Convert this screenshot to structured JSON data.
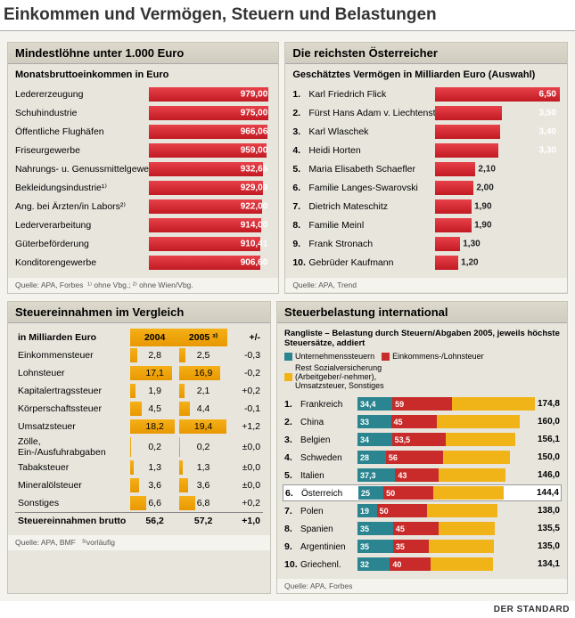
{
  "title": "Einkommen und Vermögen, Steuern und Belastungen",
  "colors": {
    "red_grad_top": "#e8414a",
    "red_grad_bot": "#c11a22",
    "orange_grad_top": "#f5b018",
    "orange_grad_bot": "#e89800",
    "teal": "#2a8590",
    "red2": "#c92a2a",
    "yellow": "#f0b418",
    "panel_bg": "#e8e5dd"
  },
  "wages": {
    "title": "Mindestlöhne unter 1.000 Euro",
    "subtitle": "Monatsbruttoeinkommen in Euro",
    "max": 1000,
    "rows": [
      {
        "label": "Ledererzeugung",
        "val": "979,00",
        "n": 979
      },
      {
        "label": "Schuhindustrie",
        "val": "975,00",
        "n": 975
      },
      {
        "label": "Öffentliche Flughäfen",
        "val": "966,06",
        "n": 966.06
      },
      {
        "label": "Friseurgewerbe",
        "val": "959,00",
        "n": 959
      },
      {
        "label": "Nahrungs- u. Genussmittelgewerbe",
        "val": "932,65",
        "n": 932.65
      },
      {
        "label": "Bekleidungsindustrie¹⁾",
        "val": "929,03",
        "n": 929.03
      },
      {
        "label": "Ang. bei Ärzten/in Labors²⁾",
        "val": "922,00",
        "n": 922
      },
      {
        "label": "Lederverarbeitung",
        "val": "914,00",
        "n": 914
      },
      {
        "label": "Güterbeförderung",
        "val": "910,41",
        "n": 910.41
      },
      {
        "label": "Konditorengewerbe",
        "val": "906,60",
        "n": 906.6
      }
    ],
    "source": "Quelle: APA, Forbes",
    "notes": "¹⁾ ohne Vbg.; ²⁾ ohne Wien/Vbg."
  },
  "rich": {
    "title": "Die reichsten Österreicher",
    "subtitle": "Geschätztes Vermögen in Milliarden Euro (Auswahl)",
    "max": 6.5,
    "rows": [
      {
        "r": "1.",
        "label": "Karl Friedrich Flick",
        "val": "6,50",
        "n": 6.5
      },
      {
        "r": "2.",
        "label": "Fürst Hans Adam v. Liechtenstein",
        "val": "3,50",
        "n": 3.5
      },
      {
        "r": "3.",
        "label": "Karl Wlaschek",
        "val": "3,40",
        "n": 3.4
      },
      {
        "r": "4.",
        "label": "Heidi Horten",
        "val": "3,30",
        "n": 3.3
      },
      {
        "r": "5.",
        "label": "Maria Elisabeth Schaefler",
        "val": "2,10",
        "n": 2.1
      },
      {
        "r": "6.",
        "label": "Familie Langes-Swarovski",
        "val": "2,00",
        "n": 2.0
      },
      {
        "r": "7.",
        "label": "Dietrich Mateschitz",
        "val": "1,90",
        "n": 1.9
      },
      {
        "r": "8.",
        "label": "Familie Meinl",
        "val": "1,90",
        "n": 1.9
      },
      {
        "r": "9.",
        "label": "Frank Stronach",
        "val": "1,30",
        "n": 1.3
      },
      {
        "r": "10.",
        "label": "Gebrüder Kaufmann",
        "val": "1,20",
        "n": 1.2
      }
    ],
    "source": "Quelle: APA, Trend"
  },
  "tax": {
    "title": "Steuereinnahmen im Vergleich",
    "subtitle": "in Milliarden Euro",
    "col1": "2004",
    "col2": "2005 ³⁾",
    "col3": "+/-",
    "maxbar": 20,
    "rows": [
      {
        "label": "Einkommensteuer",
        "a": "2,8",
        "na": 2.8,
        "b": "2,5",
        "nb": 2.5,
        "d": "-0,3"
      },
      {
        "label": "Lohnsteuer",
        "a": "17,1",
        "na": 17.1,
        "b": "16,9",
        "nb": 16.9,
        "d": "-0,2"
      },
      {
        "label": "Kapitalertragssteuer",
        "a": "1,9",
        "na": 1.9,
        "b": "2,1",
        "nb": 2.1,
        "d": "+0,2"
      },
      {
        "label": "Körperschaftssteuer",
        "a": "4,5",
        "na": 4.5,
        "b": "4,4",
        "nb": 4.4,
        "d": "-0,1"
      },
      {
        "label": "Umsatzsteuer",
        "a": "18,2",
        "na": 18.2,
        "b": "19,4",
        "nb": 19.4,
        "d": "+1,2"
      },
      {
        "label": "Zölle, Ein-/Ausfuhrabgaben",
        "a": "0,2",
        "na": 0.2,
        "b": "0,2",
        "nb": 0.2,
        "d": "±0,0"
      },
      {
        "label": "Tabaksteuer",
        "a": "1,3",
        "na": 1.3,
        "b": "1,3",
        "nb": 1.3,
        "d": "±0,0"
      },
      {
        "label": "Mineralölsteuer",
        "a": "3,6",
        "na": 3.6,
        "b": "3,6",
        "nb": 3.6,
        "d": "±0,0"
      },
      {
        "label": "Sonstiges",
        "a": "6,6",
        "na": 6.6,
        "b": "6,8",
        "nb": 6.8,
        "d": "+0,2"
      }
    ],
    "total": {
      "label": "Steuereinnahmen brutto",
      "a": "56,2",
      "b": "57,2",
      "d": "+1,0"
    },
    "source": "Quelle: APA, BMF",
    "note": "³⁾vorläufig"
  },
  "intl": {
    "title": "Steuerbelastung international",
    "subtitle": "Rangliste – Belastung durch Steuern/Abgaben 2005, jeweils höchste Steuersätze, addiert",
    "legend": [
      {
        "c": "#2a8590",
        "t": "Unternehmenssteuern"
      },
      {
        "c": "#c92a2a",
        "t": "Einkommens-/Lohnsteuer"
      },
      {
        "c": "#f0b418",
        "t": "Rest Sozialversicherung (Arbeitgeber/-nehmer), Umsatzsteuer, Sonstiges"
      }
    ],
    "max": 175,
    "rows": [
      {
        "r": "1.",
        "label": "Frankreich",
        "a": 34.4,
        "b": 59,
        "t": "174,8",
        "hl": false
      },
      {
        "r": "2.",
        "label": "China",
        "a": 33,
        "b": 45,
        "t": "160,0",
        "hl": false
      },
      {
        "r": "3.",
        "label": "Belgien",
        "a": 34,
        "b": 53.5,
        "t": "156,1",
        "hl": false
      },
      {
        "r": "4.",
        "label": "Schweden",
        "a": 28,
        "b": 56,
        "t": "150,0",
        "hl": false
      },
      {
        "r": "5.",
        "label": "Italien",
        "a": 37.3,
        "b": 43,
        "t": "146,0",
        "hl": false
      },
      {
        "r": "6.",
        "label": "Österreich",
        "a": 25,
        "b": 50,
        "t": "144,4",
        "hl": true
      },
      {
        "r": "7.",
        "label": "Polen",
        "a": 19,
        "b": 50,
        "t": "138,0",
        "hl": false
      },
      {
        "r": "8.",
        "label": "Spanien",
        "a": 35,
        "b": 45,
        "t": "135,5",
        "hl": false
      },
      {
        "r": "9.",
        "label": "Argentinien",
        "a": 35,
        "b": 35,
        "t": "135,0",
        "hl": false
      },
      {
        "r": "10.",
        "label": "Griechenl.",
        "a": 32,
        "b": 40,
        "t": "134,1",
        "hl": false
      }
    ],
    "source": "Quelle: APA, Forbes"
  },
  "brand": "DER STANDARD"
}
